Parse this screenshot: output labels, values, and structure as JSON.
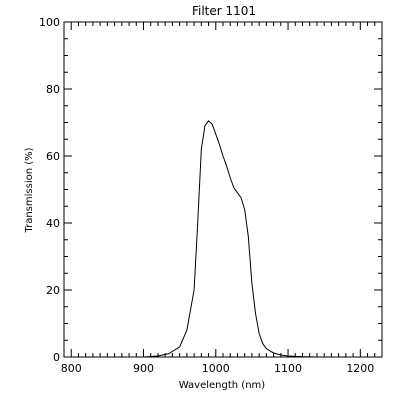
{
  "chart_data": {
    "type": "line",
    "title": "Filter 1101",
    "xlabel": "Wavelength (nm)",
    "ylabel": "Transmission (%)",
    "xlim": [
      790,
      1230
    ],
    "ylim": [
      0,
      100
    ],
    "x_ticks": [
      800,
      900,
      1000,
      1100,
      1200
    ],
    "y_ticks": [
      0,
      20,
      40,
      60,
      80,
      100
    ],
    "grid": false,
    "series": [
      {
        "x": [
          860,
          900,
          920,
          935,
          950,
          960,
          970,
          975,
          980,
          985,
          990,
          995,
          1000,
          1005,
          1010,
          1015,
          1020,
          1025,
          1030,
          1035,
          1040,
          1045,
          1050,
          1055,
          1060,
          1065,
          1070,
          1080,
          1090,
          1100,
          1110,
          1120,
          1140
        ],
        "y": [
          0,
          0,
          0.3,
          1,
          3,
          8,
          20,
          40,
          62,
          69,
          70.5,
          69.5,
          66.5,
          63.5,
          60,
          57,
          53.5,
          50.5,
          49,
          47.5,
          44,
          36,
          22,
          13,
          7,
          4,
          2.5,
          1.2,
          0.6,
          0.3,
          0.2,
          0.1,
          0
        ]
      }
    ]
  }
}
